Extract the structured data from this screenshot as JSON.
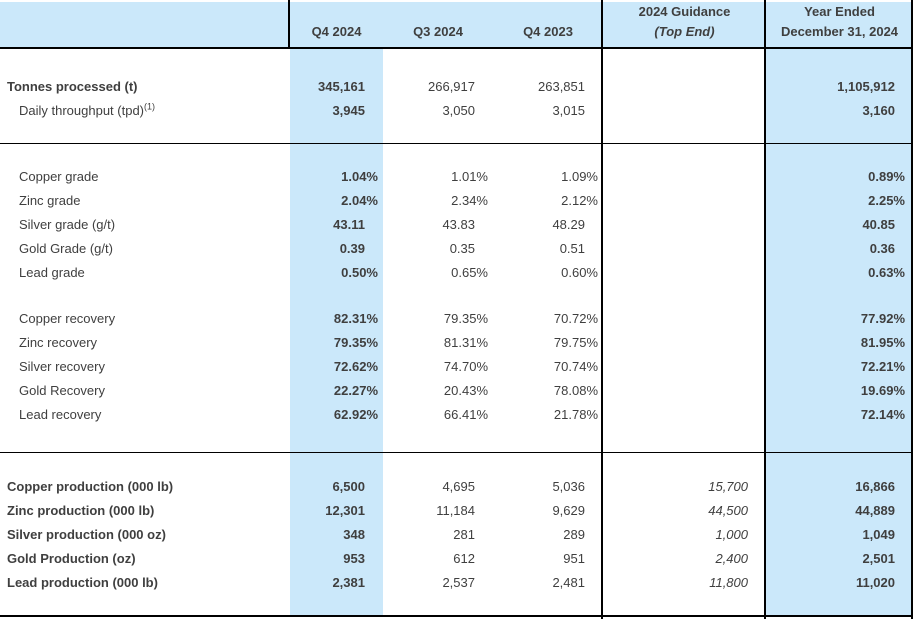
{
  "colors": {
    "highlight_blue": "#cbe8fa",
    "border_black": "#000000",
    "text_gray": "#3f3f3f",
    "background": "#ffffff"
  },
  "header": {
    "col_label": "",
    "col_q4_2024": "Q4 2024",
    "col_q3_2024": "Q3 2024",
    "col_q4_2023": "Q4 2023",
    "col_guidance_line1": "2024 Guidance",
    "col_guidance_line2": "(Top End)",
    "col_year_ended_line1": "Year Ended",
    "col_year_ended_line2": "December 31, 2024"
  },
  "column_ids": [
    "label",
    "q4-2024",
    "q3-2024",
    "q4-2023",
    "guidance-2024-top-end",
    "year-ended-december-31-2024"
  ],
  "sections": [
    {
      "id": "throughput",
      "rows": [
        {
          "label": "Tonnes processed (t)",
          "bold": true,
          "indent": false,
          "values": [
            "345,161",
            "266,917",
            "263,851",
            "",
            "1,105,912"
          ]
        },
        {
          "label": "Daily throughput (tpd)",
          "footnote": "(1)",
          "bold": false,
          "indent": true,
          "values": [
            "3,945",
            "3,050",
            "3,015",
            "",
            "3,160"
          ]
        }
      ]
    },
    {
      "id": "grades-and-recoveries",
      "rows": [
        {
          "label": "Copper grade",
          "bold": false,
          "indent": true,
          "values": [
            "1.04%",
            "1.01%",
            "1.09%",
            "",
            "0.89%"
          ]
        },
        {
          "label": "Zinc grade",
          "bold": false,
          "indent": true,
          "values": [
            "2.04%",
            "2.34%",
            "2.12%",
            "",
            "2.25%"
          ]
        },
        {
          "label": "Silver grade (g/t)",
          "bold": false,
          "indent": true,
          "values": [
            "43.11",
            "43.83",
            "48.29",
            "",
            "40.85"
          ]
        },
        {
          "label": "Gold Grade (g/t)",
          "bold": false,
          "indent": true,
          "values": [
            "0.39",
            "0.35",
            "0.51",
            "",
            "0.36"
          ]
        },
        {
          "label": "Lead grade",
          "bold": false,
          "indent": true,
          "values": [
            "0.50%",
            "0.65%",
            "0.60%",
            "",
            "0.63%"
          ]
        },
        {
          "gap": true
        },
        {
          "label": "Copper recovery",
          "bold": false,
          "indent": true,
          "values": [
            "82.31%",
            "79.35%",
            "70.72%",
            "",
            "77.92%"
          ]
        },
        {
          "label": "Zinc recovery",
          "bold": false,
          "indent": true,
          "values": [
            "79.35%",
            "81.31%",
            "79.75%",
            "",
            "81.95%"
          ]
        },
        {
          "label": "Silver recovery",
          "bold": false,
          "indent": true,
          "values": [
            "72.62%",
            "74.70%",
            "70.74%",
            "",
            "72.21%"
          ]
        },
        {
          "label": "Gold Recovery",
          "bold": false,
          "indent": true,
          "values": [
            "22.27%",
            "20.43%",
            "78.08%",
            "",
            "19.69%"
          ]
        },
        {
          "label": "Lead recovery",
          "bold": false,
          "indent": true,
          "values": [
            "62.92%",
            "66.41%",
            "21.78%",
            "",
            "72.14%"
          ]
        }
      ]
    },
    {
      "id": "production",
      "rows": [
        {
          "label": "Copper production (000 lb)",
          "bold": true,
          "indent": false,
          "values": [
            "6,500",
            "4,695",
            "5,036",
            "15,700",
            "16,866"
          ]
        },
        {
          "label": "Zinc production (000 lb)",
          "bold": true,
          "indent": false,
          "values": [
            "12,301",
            "11,184",
            "9,629",
            "44,500",
            "44,889"
          ]
        },
        {
          "label": "Silver production (000 oz)",
          "bold": true,
          "indent": false,
          "values": [
            "348",
            "281",
            "289",
            "1,000",
            "1,049"
          ]
        },
        {
          "label": "Gold Production (oz)",
          "bold": true,
          "indent": false,
          "values": [
            "953",
            "612",
            "951",
            "2,400",
            "2,501"
          ]
        },
        {
          "label": "Lead production (000 lb)",
          "bold": true,
          "indent": false,
          "values": [
            "2,381",
            "2,537",
            "2,481",
            "11,800",
            "11,020"
          ]
        }
      ]
    }
  ]
}
